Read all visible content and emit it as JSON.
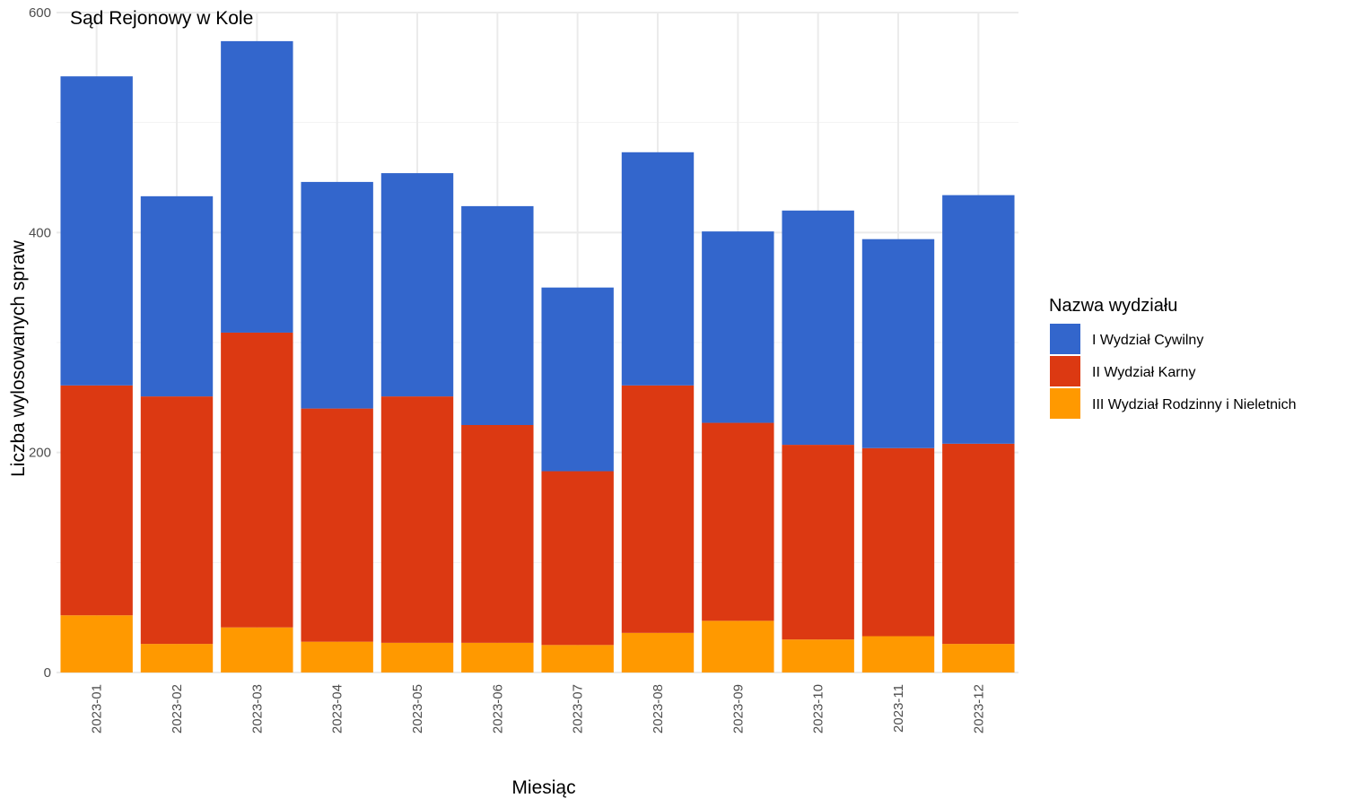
{
  "chart_data": {
    "type": "bar",
    "stacked": true,
    "title": "Sąd Rejonowy w Kole",
    "xlabel": "Miesiąc",
    "ylabel": "Liczba wylosowanych spraw",
    "ylim": [
      0,
      600
    ],
    "y_ticks": [
      0,
      200,
      400,
      600
    ],
    "grid": true,
    "legend_title": "Nazwa wydziału",
    "legend_position": "right",
    "categories": [
      "2023-01",
      "2023-02",
      "2023-03",
      "2023-04",
      "2023-05",
      "2023-06",
      "2023-07",
      "2023-08",
      "2023-09",
      "2023-10",
      "2023-11",
      "2023-12"
    ],
    "series": [
      {
        "name": "I Wydział Cywilny",
        "color": "#3366cc",
        "values": [
          281,
          182,
          265,
          206,
          203,
          199,
          167,
          212,
          174,
          213,
          190,
          226
        ]
      },
      {
        "name": "II Wydział Karny",
        "color": "#dc3912",
        "values": [
          209,
          225,
          268,
          212,
          224,
          198,
          158,
          225,
          180,
          177,
          171,
          182
        ]
      },
      {
        "name": "III Wydział Rodzinny i Nieletnich",
        "color": "#ff9900",
        "values": [
          52,
          26,
          41,
          28,
          27,
          27,
          25,
          36,
          47,
          30,
          33,
          26
        ]
      }
    ]
  }
}
